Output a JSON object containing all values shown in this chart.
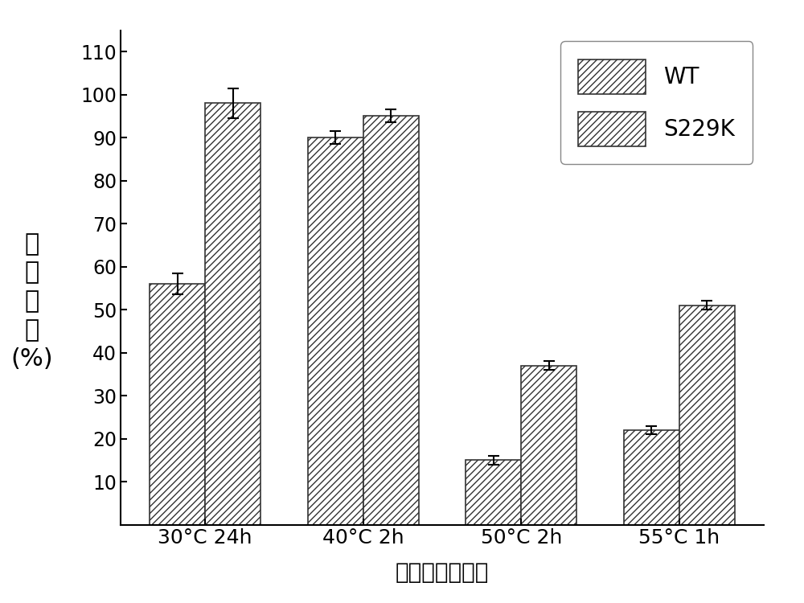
{
  "categories": [
    "30°C 24h",
    "40°C 2h",
    "50°C 2h",
    "55°C 1h"
  ],
  "WT_values": [
    56,
    90,
    15,
    22
  ],
  "S229K_values": [
    98,
    95,
    37,
    51
  ],
  "WT_errors": [
    2.5,
    1.5,
    1.0,
    1.0
  ],
  "S229K_errors": [
    3.5,
    1.5,
    1.0,
    1.0
  ],
  "ylabel_lines": [
    "残",
    "留",
    "酶",
    "活",
    "(%)"
  ],
  "xlabel": "处理温度及时间",
  "legend_labels": [
    "WT",
    "S229K"
  ],
  "ylim": [
    0,
    115
  ],
  "yticks": [
    10,
    20,
    30,
    40,
    50,
    60,
    70,
    80,
    90,
    100,
    110
  ],
  "bar_width": 0.35,
  "hatch": "////",
  "bar_color": "white",
  "edge_color": "#333333",
  "background_color": "#ffffff"
}
